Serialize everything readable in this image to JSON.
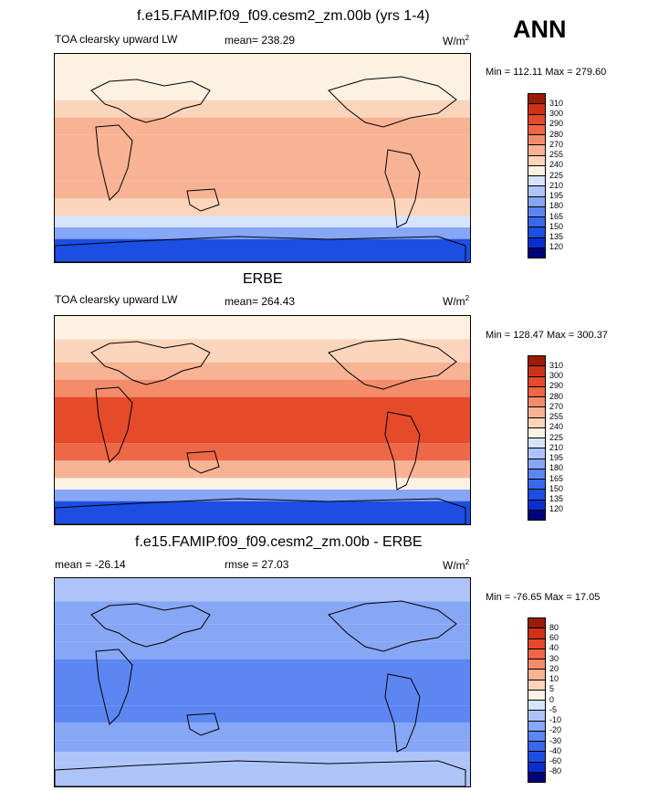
{
  "season": "ANN",
  "unit_base": "W/m",
  "unit_exp": "2",
  "palette": [
    "#00047a",
    "#0a2fd0",
    "#1c4ee2",
    "#3a68ec",
    "#5d86f3",
    "#86a6f6",
    "#aec4f9",
    "#d6e4fb",
    "#fdf1e2",
    "#fbd5bb",
    "#f8b394",
    "#f48c6c",
    "#ee6746",
    "#e54a2a",
    "#cc3316",
    "#9a1c06"
  ],
  "chart_data": [
    {
      "type": "heatmap",
      "title": "f.e15.FAMIP.f09_f09.cesm2_zm.00b (yrs 1-4)",
      "variable": "TOA clearsky upward LW",
      "mean_text": "mean= 238.29",
      "minmax_text": "Min = 112.11 Max = 279.60",
      "min": 112.11,
      "max": 279.6,
      "mean": 238.29,
      "levels": [
        120,
        135,
        150,
        165,
        180,
        195,
        210,
        225,
        240,
        255,
        270,
        280,
        290,
        300,
        310
      ],
      "lat_bands": [
        {
          "lat": [
            70,
            90
          ],
          "level": 225
        },
        {
          "lat": [
            50,
            70
          ],
          "level": 225
        },
        {
          "lat": [
            35,
            50
          ],
          "level": 240
        },
        {
          "lat": [
            20,
            35
          ],
          "level": 255
        },
        {
          "lat": [
            -20,
            20
          ],
          "level": 255
        },
        {
          "lat": [
            -35,
            -20
          ],
          "level": 255
        },
        {
          "lat": [
            -50,
            -35
          ],
          "level": 240
        },
        {
          "lat": [
            -60,
            -50
          ],
          "level": 210
        },
        {
          "lat": [
            -70,
            -60
          ],
          "level": 180
        },
        {
          "lat": [
            -90,
            -70
          ],
          "level": 135
        }
      ]
    },
    {
      "type": "heatmap",
      "title": "ERBE",
      "variable": "TOA clearsky upward LW",
      "mean_text": "mean= 264.43",
      "minmax_text": "Min = 128.47 Max = 300.37",
      "min": 128.47,
      "max": 300.37,
      "mean": 264.43,
      "levels": [
        120,
        135,
        150,
        165,
        180,
        195,
        210,
        225,
        240,
        255,
        270,
        280,
        290,
        300,
        310
      ],
      "lat_bands": [
        {
          "lat": [
            70,
            90
          ],
          "level": 225
        },
        {
          "lat": [
            50,
            70
          ],
          "level": 240
        },
        {
          "lat": [
            35,
            50
          ],
          "level": 255
        },
        {
          "lat": [
            20,
            35
          ],
          "level": 270
        },
        {
          "lat": [
            -20,
            20
          ],
          "level": 290
        },
        {
          "lat": [
            -35,
            -20
          ],
          "level": 280
        },
        {
          "lat": [
            -50,
            -35
          ],
          "level": 255
        },
        {
          "lat": [
            -60,
            -50
          ],
          "level": 225
        },
        {
          "lat": [
            -70,
            -60
          ],
          "level": 180
        },
        {
          "lat": [
            -90,
            -70
          ],
          "level": 135
        }
      ]
    },
    {
      "type": "heatmap",
      "title": "f.e15.FAMIP.f09_f09.cesm2_zm.00b - ERBE",
      "variable": "mean = -26.14",
      "mean_text": "rmse =  27.03",
      "minmax_text": "Min = -76.65 Max =  17.05",
      "min": -76.65,
      "max": 17.05,
      "mean": -26.14,
      "rmse": 27.03,
      "levels": [
        -80,
        -60,
        -40,
        -30,
        -20,
        -10,
        -5,
        0,
        5,
        10,
        20,
        30,
        40,
        60,
        80
      ],
      "lat_bands": [
        {
          "lat": [
            70,
            90
          ],
          "level": -10
        },
        {
          "lat": [
            50,
            70
          ],
          "level": -20
        },
        {
          "lat": [
            35,
            50
          ],
          "level": -20
        },
        {
          "lat": [
            20,
            35
          ],
          "level": -20
        },
        {
          "lat": [
            -20,
            20
          ],
          "level": -30
        },
        {
          "lat": [
            -35,
            -20
          ],
          "level": -30
        },
        {
          "lat": [
            -50,
            -35
          ],
          "level": -20
        },
        {
          "lat": [
            -60,
            -50
          ],
          "level": -20
        },
        {
          "lat": [
            -70,
            -60
          ],
          "level": -10
        },
        {
          "lat": [
            -90,
            -70
          ],
          "level": -10
        }
      ]
    }
  ]
}
